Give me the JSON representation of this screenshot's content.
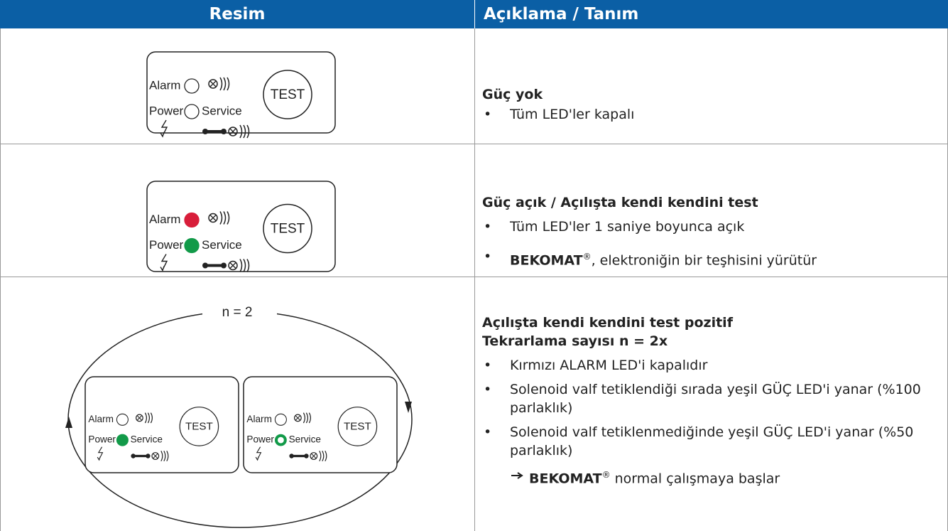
{
  "table": {
    "header": [
      "Resim",
      "Açıklama / Tanım"
    ],
    "rows": [
      {
        "title": "Güç yok",
        "items": [
          {
            "text": "Tüm LED'ler kapalı"
          }
        ]
      },
      {
        "title": "Güç açık / Açılışta kendi kendini test",
        "items": [
          {
            "text": "Tüm LED'ler 1 saniye boyunca açık"
          },
          {
            "bold": "BEKOMAT",
            "sup": "®",
            "text": ", elektroniğin bir teşhisini yürütür"
          }
        ]
      },
      {
        "title": "Açılışta kendi kendini test pozitif",
        "subtitle": "Tekrarlama sayısı n = 2x",
        "items": [
          {
            "text": "Kırmızı ALARM LED'i kapalıdır"
          },
          {
            "text": "Solenoid valf tetiklendiği sırada yeşil GÜÇ LED'i yanar (%100 parlaklık)"
          },
          {
            "text": "Solenoid valf tetiklenmediğinde yeşil GÜÇ LED'i yanar (%50 parlaklık)"
          }
        ],
        "result": {
          "bold": "BEKOMAT",
          "sup": "®",
          "text": " normal çalışmaya başlar"
        },
        "cycle_label": "n = 2"
      }
    ]
  },
  "panel": {
    "alarm": "Alarm",
    "power": "Power",
    "service": "Service",
    "button": "TEST"
  }
}
